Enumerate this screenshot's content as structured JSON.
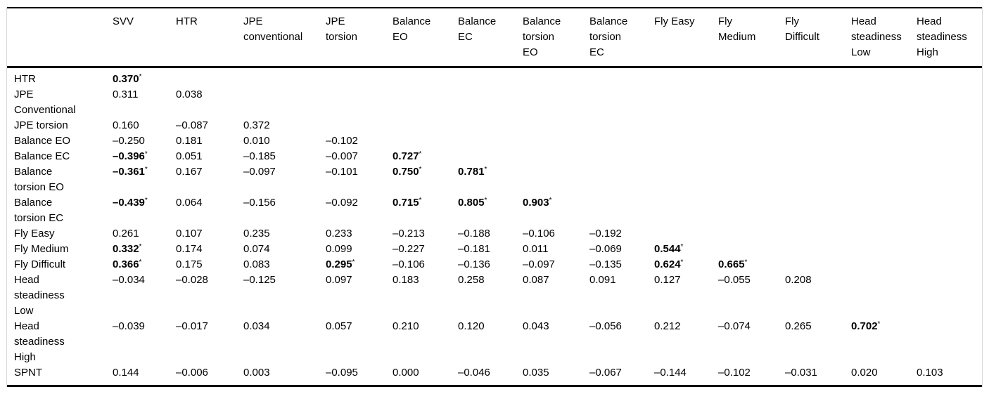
{
  "table": {
    "corner_label": "",
    "columns": [
      "SVV",
      "HTR",
      "JPE\nconventional",
      "JPE\ntorsion",
      "Balance\nEO",
      "Balance\nEC",
      "Balance\ntorsion\nEO",
      "Balance\ntorsion\nEC",
      "Fly Easy",
      "Fly\nMedium",
      "Fly\nDifficult",
      "Head\nsteadiness\nLow",
      "Head\nsteadiness\nHigh"
    ],
    "rows": [
      {
        "label": "HTR",
        "values": [
          "0.370*"
        ]
      },
      {
        "label": "JPE\nConventional",
        "values": [
          "0.311",
          "0.038"
        ]
      },
      {
        "label": "JPE torsion",
        "values": [
          "0.160",
          "–0.087",
          "0.372"
        ]
      },
      {
        "label": "Balance EO",
        "values": [
          "–0.250",
          "0.181",
          "0.010",
          "–0.102"
        ]
      },
      {
        "label": "Balance EC",
        "values": [
          "–0.396*",
          "0.051",
          "–0.185",
          "–0.007",
          "0.727*"
        ]
      },
      {
        "label": "Balance\ntorsion EO",
        "values": [
          "–0.361*",
          "0.167",
          "–0.097",
          "–0.101",
          "0.750*",
          "0.781*"
        ]
      },
      {
        "label": "Balance\ntorsion EC",
        "values": [
          "–0.439*",
          "0.064",
          "–0.156",
          "–0.092",
          "0.715*",
          "0.805*",
          "0.903*"
        ]
      },
      {
        "label": "Fly Easy",
        "values": [
          "0.261",
          "0.107",
          "0.235",
          "0.233",
          "–0.213",
          "–0.188",
          "–0.106",
          "–0.192"
        ]
      },
      {
        "label": "Fly Medium",
        "values": [
          "0.332*",
          "0.174",
          "0.074",
          "0.099",
          "–0.227",
          "–0.181",
          "0.011",
          "–0.069",
          "0.544*"
        ]
      },
      {
        "label": "Fly Difficult",
        "values": [
          "0.366*",
          "0.175",
          "0.083",
          "0.295*",
          "–0.106",
          "–0.136",
          "–0.097",
          "–0.135",
          "0.624*",
          "0.665*"
        ]
      },
      {
        "label": "Head\nsteadiness\nLow",
        "values": [
          "–0.034",
          "–0.028",
          "–0.125",
          "0.097",
          "0.183",
          "0.258",
          "0.087",
          "0.091",
          "0.127",
          "–0.055",
          "0.208"
        ]
      },
      {
        "label": "Head\nsteadiness\nHigh",
        "values": [
          "–0.039",
          "–0.017",
          "0.034",
          "0.057",
          "0.210",
          "0.120",
          "0.043",
          "–0.056",
          "0.212",
          "–0.074",
          "0.265",
          "0.702*"
        ]
      },
      {
        "label": "SPNT",
        "values": [
          "0.144",
          "–0.006",
          "0.003",
          "–0.095",
          "0.000",
          "–0.046",
          "0.035",
          "–0.067",
          "–0.144",
          "–0.102",
          "–0.031",
          "0.020",
          "0.103"
        ]
      }
    ]
  }
}
